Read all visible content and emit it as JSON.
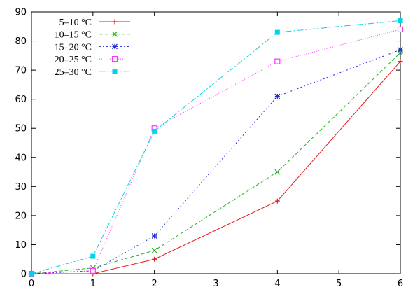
{
  "chart_data": {
    "type": "line",
    "title": "",
    "xlabel": "",
    "ylabel": "",
    "xlim": [
      0,
      6
    ],
    "ylim": [
      0,
      90
    ],
    "xticks": [
      0,
      1,
      2,
      3,
      4,
      5,
      6
    ],
    "yticks": [
      0,
      10,
      20,
      30,
      40,
      50,
      60,
      70,
      80,
      90
    ],
    "grid": false,
    "legend_position": "top-left",
    "series": [
      {
        "name": "5–10 °C",
        "color": "#e41a1c",
        "dash": "solid",
        "marker": "plus",
        "x": [
          0,
          1,
          2,
          4,
          6
        ],
        "y": [
          0,
          0,
          5,
          25,
          73
        ]
      },
      {
        "name": "10–15 °C",
        "color": "#22b222",
        "dash": "dashed",
        "marker": "cross",
        "x": [
          0,
          1,
          2,
          4,
          6
        ],
        "y": [
          0,
          2,
          8,
          35,
          76
        ]
      },
      {
        "name": "15–20 °C",
        "color": "#1f2bd4",
        "dash": "dotted",
        "marker": "star",
        "x": [
          0,
          1,
          2,
          4,
          6
        ],
        "y": [
          0,
          1,
          13,
          61,
          77
        ]
      },
      {
        "name": "20–25 °C",
        "color": "#ff33ff",
        "dash": "fine-dotted",
        "marker": "open-square",
        "x": [
          0,
          1,
          2,
          4,
          6
        ],
        "y": [
          0,
          1,
          50,
          73,
          84
        ]
      },
      {
        "name": "25–30 °C",
        "color": "#00d4e8",
        "dash": "dash-dot",
        "marker": "filled-square",
        "x": [
          0,
          1,
          2,
          4,
          6
        ],
        "y": [
          0,
          6,
          49,
          83,
          87
        ]
      }
    ]
  }
}
